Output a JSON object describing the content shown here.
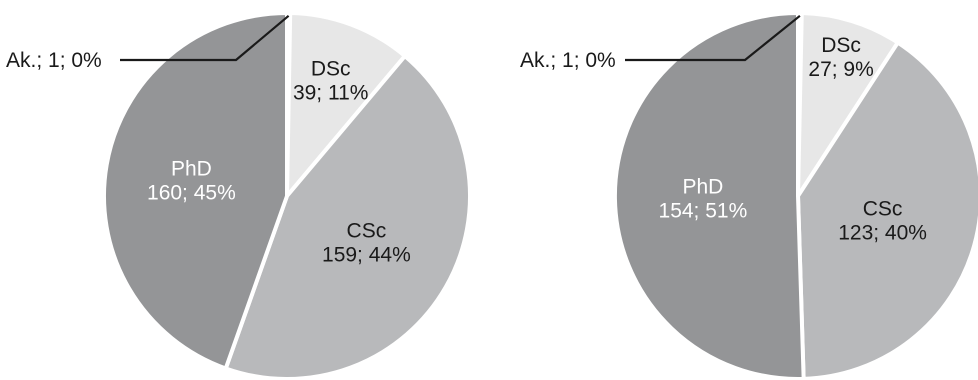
{
  "chart_data": [
    {
      "type": "pie",
      "title": "",
      "slices": [
        {
          "label": "Ak.",
          "value": 1,
          "percent": "0%",
          "color": "#ffffff",
          "label_color": "#1a1a1a"
        },
        {
          "label": "DSc",
          "value": 39,
          "percent": "11%",
          "color": "#e7e7e7",
          "label_color": "#1a1a1a"
        },
        {
          "label": "CSc",
          "value": 159,
          "percent": "44%",
          "color": "#b8b9bb",
          "label_color": "#1a1a1a"
        },
        {
          "label": "PhD",
          "value": 160,
          "percent": "45%",
          "color": "#949597",
          "label_color": "#ffffff"
        }
      ]
    },
    {
      "type": "pie",
      "title": "",
      "slices": [
        {
          "label": "Ak.",
          "value": 1,
          "percent": "0%",
          "color": "#ffffff",
          "label_color": "#1a1a1a"
        },
        {
          "label": "DSc",
          "value": 27,
          "percent": "9%",
          "color": "#e7e7e7",
          "label_color": "#1a1a1a"
        },
        {
          "label": "CSc",
          "value": 123,
          "percent": "40%",
          "color": "#b8b9bb",
          "label_color": "#1a1a1a"
        },
        {
          "label": "PhD",
          "value": 154,
          "percent": "51%",
          "color": "#949597",
          "label_color": "#ffffff"
        }
      ]
    }
  ]
}
